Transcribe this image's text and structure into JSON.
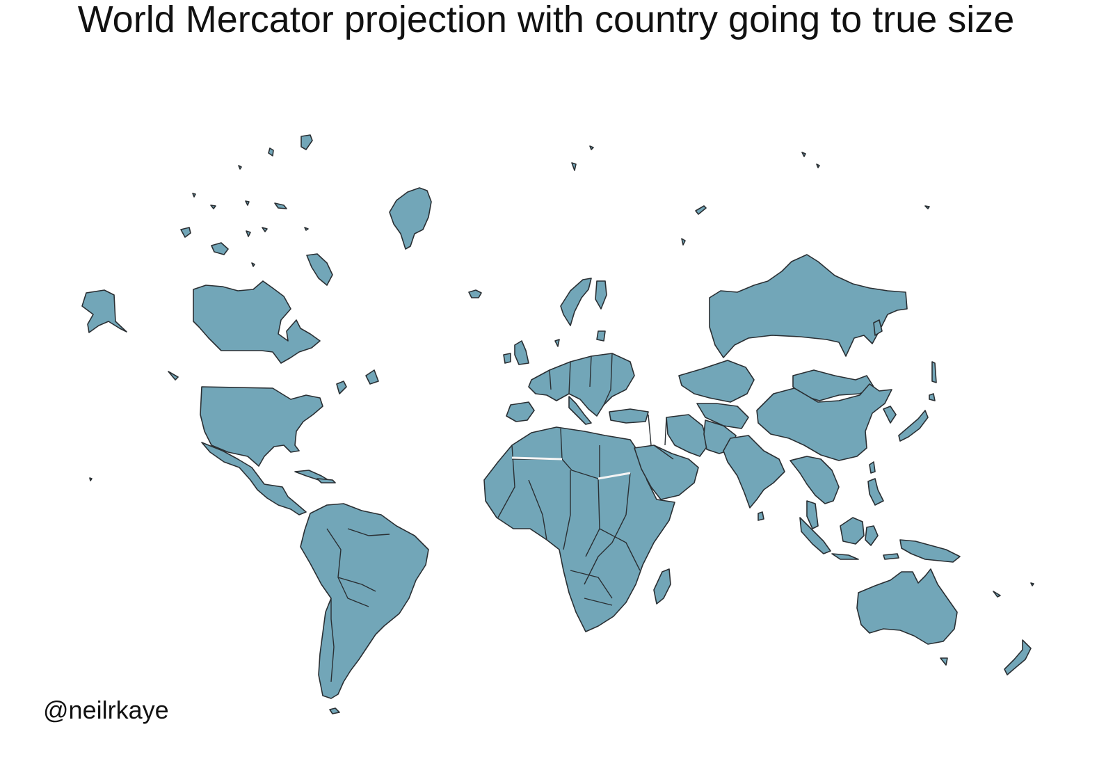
{
  "title": "World Mercator projection with country going to true size",
  "credit": "@neilrkaye",
  "colors": {
    "land": "#72a6b8",
    "border": "#2a2f33",
    "background": "#ffffff"
  }
}
